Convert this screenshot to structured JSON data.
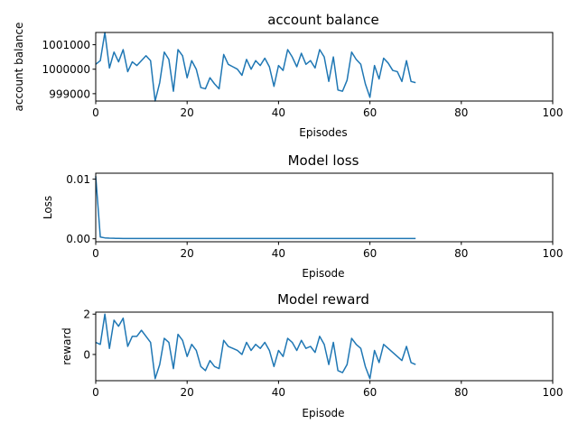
{
  "chart_data": [
    {
      "type": "line",
      "title": "account balance",
      "xlabel": "Episodes",
      "ylabel": "account balance",
      "xlim": [
        0,
        100
      ],
      "ylim": [
        998700,
        1001500
      ],
      "xticks": [
        0,
        20,
        40,
        60,
        80,
        100
      ],
      "yticks": [
        999000,
        1000000,
        1001000
      ],
      "yticklabels": [
        "999000",
        "1000000",
        "1001000"
      ],
      "grid": false,
      "series": [
        {
          "color": "#1f77b4",
          "x": [
            0,
            1,
            2,
            3,
            4,
            5,
            6,
            7,
            8,
            9,
            10,
            11,
            12,
            13,
            14,
            15,
            16,
            17,
            18,
            19,
            20,
            21,
            22,
            23,
            24,
            25,
            26,
            27,
            28,
            29,
            30,
            31,
            32,
            33,
            34,
            35,
            36,
            37,
            38,
            39,
            40,
            41,
            42,
            43,
            44,
            45,
            46,
            47,
            48,
            49,
            50,
            51,
            52,
            53,
            54,
            55,
            56,
            57,
            58,
            59,
            60,
            61,
            62,
            63,
            64,
            65,
            66,
            67,
            68,
            69,
            70
          ],
          "values": [
            1000200,
            1000350,
            1001500,
            1000050,
            1000700,
            1000300,
            1000800,
            999900,
            1000300,
            1000150,
            1000350,
            1000550,
            1000350,
            998700,
            999450,
            1000700,
            1000400,
            999100,
            1000800,
            1000550,
            999650,
            1000350,
            1000000,
            999250,
            999200,
            999650,
            999400,
            999200,
            1000600,
            1000200,
            1000100,
            1000000,
            999750,
            1000400,
            1000000,
            1000350,
            1000150,
            1000450,
            1000100,
            999300,
            1000150,
            999950,
            1000800,
            1000500,
            1000100,
            1000650,
            1000200,
            1000350,
            1000050,
            1000800,
            1000500,
            999500,
            1000500,
            999150,
            999100,
            999550,
            1000700,
            1000400,
            1000200,
            999400,
            998850,
            1000150,
            999600,
            1000450,
            1000250,
            999950,
            999900,
            999500,
            1000350,
            999500,
            999450
          ]
        }
      ]
    },
    {
      "type": "line",
      "title": "Model loss",
      "xlabel": "Episode",
      "ylabel": "Loss",
      "xlim": [
        0,
        100
      ],
      "ylim": [
        -0.0005,
        0.011
      ],
      "xticks": [
        0,
        20,
        40,
        60,
        80,
        100
      ],
      "yticks": [
        0.0,
        0.01
      ],
      "yticklabels": [
        "0.00",
        "0.01"
      ],
      "grid": false,
      "series": [
        {
          "color": "#1f77b4",
          "x": [
            0,
            1,
            2,
            3,
            4,
            5,
            6,
            7,
            8,
            9,
            10,
            11,
            12,
            13,
            14,
            15,
            16,
            17,
            18,
            19,
            20,
            21,
            22,
            23,
            24,
            25,
            26,
            27,
            28,
            29,
            30,
            31,
            32,
            33,
            34,
            35,
            36,
            37,
            38,
            39,
            40,
            41,
            42,
            43,
            44,
            45,
            46,
            47,
            48,
            49,
            50,
            51,
            52,
            53,
            54,
            55,
            56,
            57,
            58,
            59,
            60,
            61,
            62,
            63,
            64,
            65,
            66,
            67,
            68,
            69,
            70
          ],
          "values": [
            0.0105,
            0.0003,
            0.00015,
            0.0001,
            8e-05,
            6e-05,
            5e-05,
            5e-05,
            5e-05,
            5e-05,
            5e-05,
            5e-05,
            5e-05,
            5e-05,
            5e-05,
            5e-05,
            5e-05,
            5e-05,
            5e-05,
            5e-05,
            5e-05,
            5e-05,
            5e-05,
            5e-05,
            5e-05,
            5e-05,
            5e-05,
            5e-05,
            5e-05,
            5e-05,
            5e-05,
            5e-05,
            5e-05,
            5e-05,
            5e-05,
            5e-05,
            5e-05,
            5e-05,
            5e-05,
            5e-05,
            5e-05,
            5e-05,
            5e-05,
            5e-05,
            5e-05,
            5e-05,
            5e-05,
            5e-05,
            5e-05,
            5e-05,
            5e-05,
            5e-05,
            5e-05,
            5e-05,
            5e-05,
            5e-05,
            5e-05,
            5e-05,
            5e-05,
            5e-05,
            5e-05,
            5e-05,
            5e-05,
            5e-05,
            5e-05,
            5e-05,
            5e-05,
            5e-05,
            5e-05,
            5e-05,
            5e-05
          ]
        }
      ]
    },
    {
      "type": "line",
      "title": "Model reward",
      "xlabel": "Episode",
      "ylabel": "reward",
      "xlim": [
        0,
        100
      ],
      "ylim": [
        -1.3,
        2.1
      ],
      "xticks": [
        0,
        20,
        40,
        60,
        80,
        100
      ],
      "yticks": [
        0,
        2
      ],
      "yticklabels": [
        "0",
        "2"
      ],
      "grid": false,
      "series": [
        {
          "color": "#1f77b4",
          "x": [
            0,
            1,
            2,
            3,
            4,
            5,
            6,
            7,
            8,
            9,
            10,
            11,
            12,
            13,
            14,
            15,
            16,
            17,
            18,
            19,
            20,
            21,
            22,
            23,
            24,
            25,
            26,
            27,
            28,
            29,
            30,
            31,
            32,
            33,
            34,
            35,
            36,
            37,
            38,
            39,
            40,
            41,
            42,
            43,
            44,
            45,
            46,
            47,
            48,
            49,
            50,
            51,
            52,
            53,
            54,
            55,
            56,
            57,
            58,
            59,
            60,
            61,
            62,
            63,
            64,
            65,
            66,
            67,
            68,
            69,
            70
          ],
          "values": [
            0.6,
            0.5,
            2.0,
            0.3,
            1.7,
            1.4,
            1.8,
            0.4,
            0.9,
            0.9,
            1.2,
            0.9,
            0.6,
            -1.2,
            -0.5,
            0.8,
            0.6,
            -0.7,
            1.0,
            0.7,
            -0.1,
            0.5,
            0.2,
            -0.6,
            -0.8,
            -0.3,
            -0.6,
            -0.7,
            0.7,
            0.4,
            0.3,
            0.2,
            0.0,
            0.6,
            0.2,
            0.5,
            0.3,
            0.6,
            0.2,
            -0.6,
            0.2,
            -0.1,
            0.8,
            0.6,
            0.2,
            0.7,
            0.3,
            0.4,
            0.1,
            0.9,
            0.5,
            -0.5,
            0.6,
            -0.8,
            -0.9,
            -0.5,
            0.8,
            0.5,
            0.3,
            -0.6,
            -1.2,
            0.2,
            -0.4,
            0.5,
            0.3,
            0.1,
            -0.1,
            -0.3,
            0.4,
            -0.4,
            -0.5
          ]
        }
      ]
    }
  ]
}
